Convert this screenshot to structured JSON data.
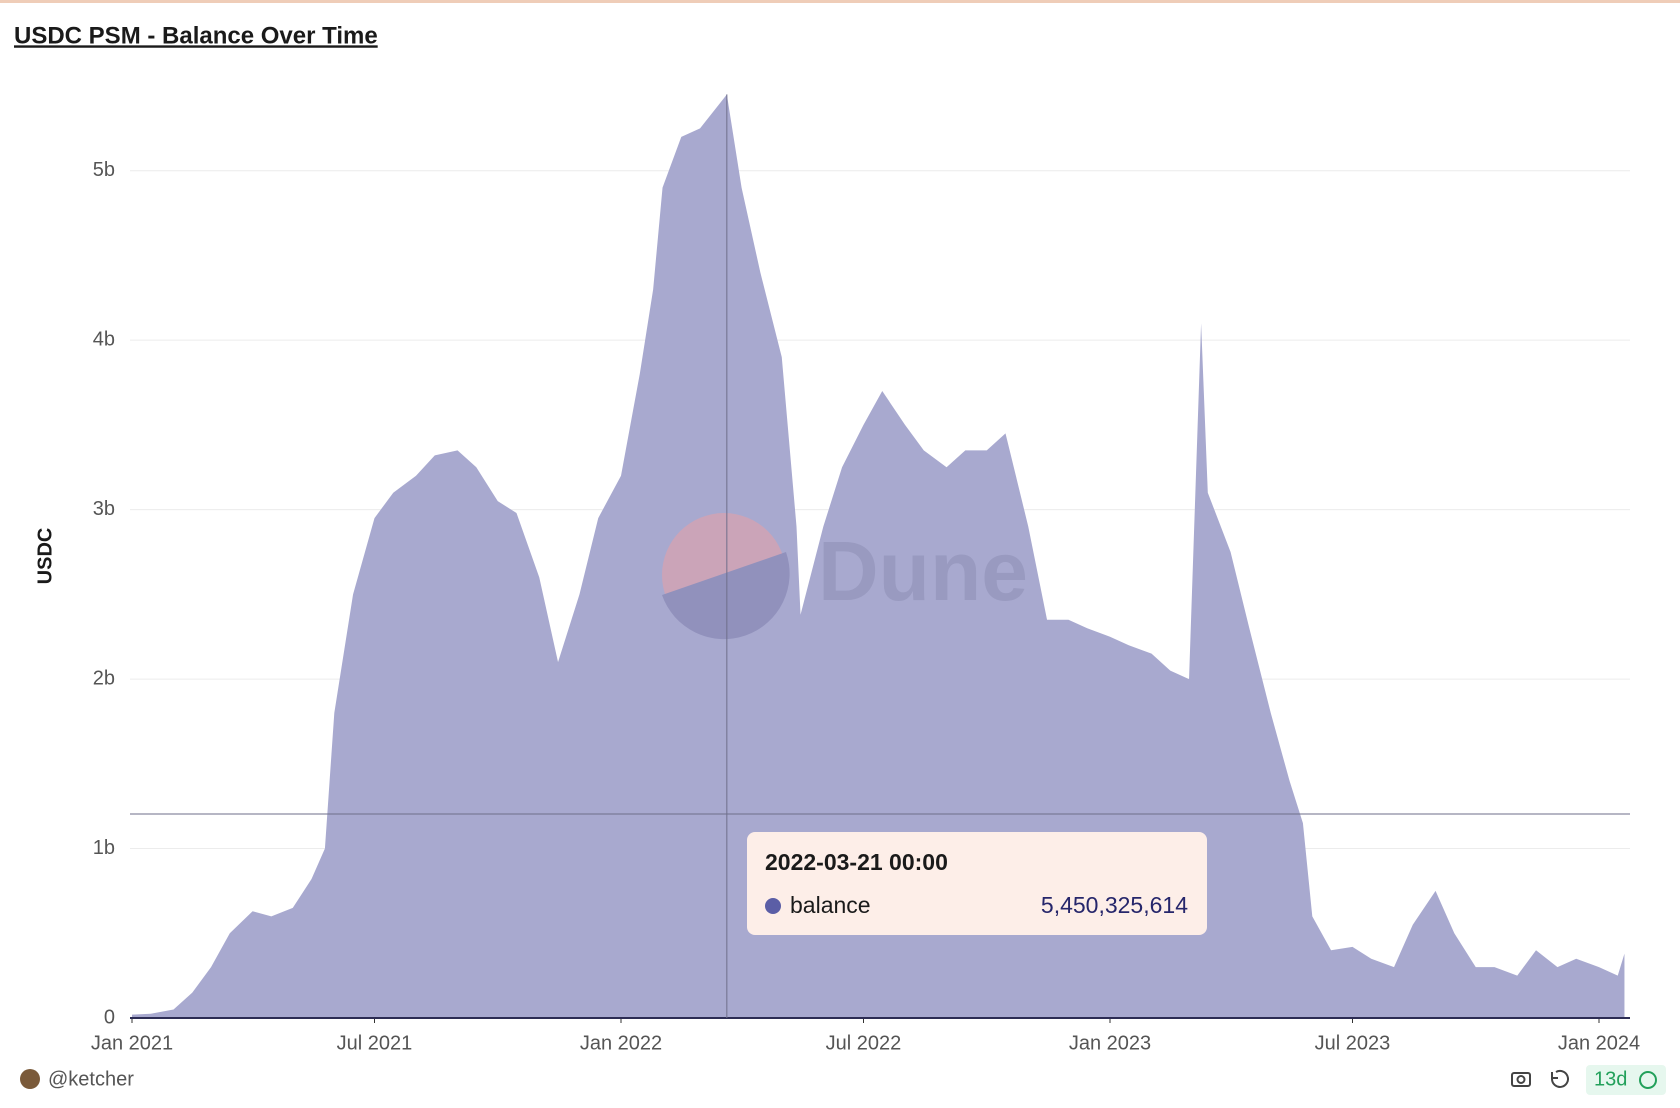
{
  "chart_data": {
    "type": "area",
    "title": "USDC PSM - Balance Over Time",
    "y_label": "USDC",
    "watermark": "Dune",
    "author": "@ketcher",
    "age": "13d",
    "color": "#a8a9cf",
    "grid": true,
    "x": [
      "2021-01-01",
      "2021-01-15",
      "2021-02-01",
      "2021-02-15",
      "2021-03-01",
      "2021-03-15",
      "2021-04-01",
      "2021-04-15",
      "2021-05-01",
      "2021-05-15",
      "2021-05-25",
      "2021-06-01",
      "2021-06-15",
      "2021-07-01",
      "2021-07-15",
      "2021-08-01",
      "2021-08-15",
      "2021-09-01",
      "2021-09-15",
      "2021-10-01",
      "2021-10-15",
      "2021-11-01",
      "2021-11-15",
      "2021-12-01",
      "2021-12-15",
      "2022-01-01",
      "2022-01-15",
      "2022-01-25",
      "2022-02-01",
      "2022-02-15",
      "2022-03-01",
      "2022-03-21",
      "2022-04-01",
      "2022-04-15",
      "2022-05-01",
      "2022-05-12",
      "2022-05-15",
      "2022-06-01",
      "2022-06-15",
      "2022-07-01",
      "2022-07-15",
      "2022-08-01",
      "2022-08-15",
      "2022-09-01",
      "2022-09-15",
      "2022-10-01",
      "2022-10-15",
      "2022-11-01",
      "2022-11-15",
      "2022-12-01",
      "2022-12-15",
      "2023-01-01",
      "2023-01-15",
      "2023-02-01",
      "2023-02-15",
      "2023-03-01",
      "2023-03-10",
      "2023-03-15",
      "2023-04-01",
      "2023-04-15",
      "2023-05-01",
      "2023-05-15",
      "2023-05-25",
      "2023-06-01",
      "2023-06-15",
      "2023-07-01",
      "2023-07-15",
      "2023-08-01",
      "2023-08-15",
      "2023-09-01",
      "2023-09-15",
      "2023-10-01",
      "2023-10-15",
      "2023-11-01",
      "2023-11-15",
      "2023-12-01",
      "2023-12-15",
      "2024-01-01",
      "2024-01-15",
      "2024-01-20"
    ],
    "series": [
      {
        "name": "balance",
        "color": "#a8a9cf",
        "values": [
          20000000,
          25000000,
          50000000,
          150000000,
          300000000,
          500000000,
          630000000,
          600000000,
          650000000,
          820000000,
          1000000000,
          1800000000,
          2500000000,
          2950000000,
          3100000000,
          3200000000,
          3320000000,
          3350000000,
          3250000000,
          3050000000,
          2980000000,
          2600000000,
          2100000000,
          2500000000,
          2950000000,
          3200000000,
          3800000000,
          4300000000,
          4900000000,
          5200000000,
          5250000000,
          5450000000,
          4900000000,
          4400000000,
          3900000000,
          2900000000,
          2380000000,
          2900000000,
          3250000000,
          3500000000,
          3700000000,
          3500000000,
          3350000000,
          3250000000,
          3350000000,
          3350000000,
          3450000000,
          2900000000,
          2350000000,
          2350000000,
          2300000000,
          2250000000,
          2200000000,
          2150000000,
          2050000000,
          2000000000,
          4100000000,
          3100000000,
          2750000000,
          2300000000,
          1800000000,
          1400000000,
          1150000000,
          600000000,
          400000000,
          420000000,
          350000000,
          300000000,
          550000000,
          750000000,
          500000000,
          300000000,
          300000000,
          250000000,
          400000000,
          300000000,
          350000000,
          300000000,
          250000000,
          380000000
        ]
      }
    ],
    "xlim": [
      "2021-01-01",
      "2024-01-22"
    ],
    "xticks": [
      {
        "value": "2021-01-01",
        "label": "Jan 2021"
      },
      {
        "value": "2021-07-01",
        "label": "Jul 2021"
      },
      {
        "value": "2022-01-01",
        "label": "Jan 2022"
      },
      {
        "value": "2022-07-01",
        "label": "Jul 2022"
      },
      {
        "value": "2023-01-01",
        "label": "Jan 2023"
      },
      {
        "value": "2023-07-01",
        "label": "Jul 2023"
      },
      {
        "value": "2024-01-01",
        "label": "Jan 2024"
      }
    ],
    "ylim": [
      0,
      5500000000
    ],
    "yticks": [
      0,
      {
        "value": 1000000000,
        "label": "1b"
      },
      {
        "value": 2000000000,
        "label": "2b"
      },
      {
        "value": 3000000000,
        "label": "3b"
      },
      {
        "value": 4000000000,
        "label": "4b"
      },
      {
        "value": 5000000000,
        "label": "5b"
      }
    ],
    "tooltip": {
      "date": "2022-03-21 00:00",
      "series": "balance",
      "value": 5450325614,
      "value_label": "5,450,325,614"
    }
  }
}
